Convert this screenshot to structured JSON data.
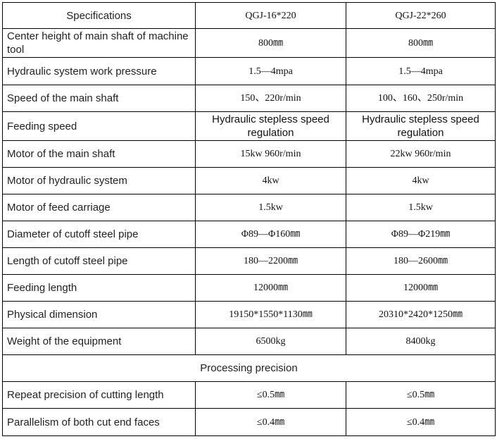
{
  "table": {
    "header": [
      "Specifications",
      "QGJ-16*220",
      "QGJ-22*260"
    ],
    "rows": [
      [
        "Center height of main shaft of machine tool",
        "800㎜",
        "800㎜"
      ],
      [
        "Hydraulic system work pressure",
        "1.5—4mpa",
        "1.5—4mpa"
      ],
      [
        "Speed of the main shaft",
        "150、220r/min",
        "100、160、250r/min"
      ],
      [
        "Feeding speed",
        "Hydraulic stepless speed regulation",
        "Hydraulic stepless speed regulation"
      ],
      [
        "Motor of the main shaft",
        "15kw 960r/min",
        "22kw 960r/min"
      ],
      [
        "Motor of hydraulic system",
        "4kw",
        "4kw"
      ],
      [
        "Motor of feed carriage",
        "1.5kw",
        "1.5kw"
      ],
      [
        "Diameter of cutoff steel pipe",
        "Φ89—Φ160㎜",
        "Φ89—Φ219㎜"
      ],
      [
        "Length of cutoff steel pipe",
        "180—2200㎜",
        "180—2600㎜"
      ],
      [
        "Feeding length",
        "12000㎜",
        "12000㎜"
      ],
      [
        "Physical dimension",
        "19150*1550*1130㎜",
        "20310*2420*1250㎜"
      ],
      [
        "Weight of the equipment",
        "6500kg",
        "8400kg"
      ]
    ],
    "section_title": "Processing precision",
    "precision_rows": [
      [
        "Repeat precision of cutting length",
        "≤0.5㎜",
        "≤0.5㎜"
      ],
      [
        "Parallelism of both cut end faces",
        "≤0.4㎜",
        "≤0.4㎜"
      ]
    ]
  }
}
